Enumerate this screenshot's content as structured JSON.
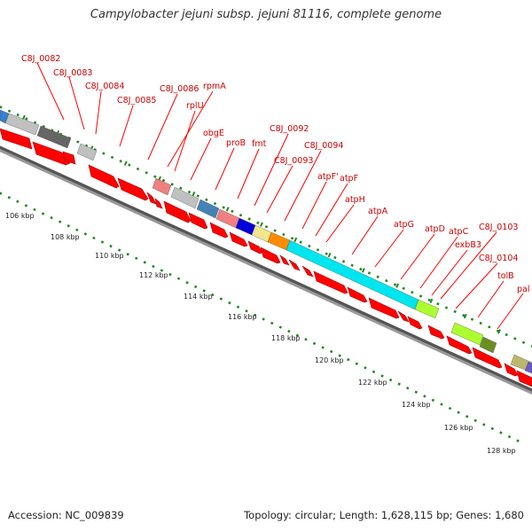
{
  "title": "Campylobacter jejuni subsp. jejuni 81116, complete genome",
  "footer": {
    "accession": "Accession: NC_009839",
    "stats": "Topology: circular; Length: 1,628,115 bp; Genes: 1,680"
  },
  "colors": {
    "gene_arrow": "#ff0000",
    "label_line": "#ff0000",
    "label_text": "#cc0000",
    "tick_dots": "#228822",
    "backbone": "#999999",
    "backbone_shadow": "#555555"
  },
  "gene_labels": [
    "C8J_0082",
    "C8J_0083",
    "C8J_0084",
    "C8J_0085",
    "C8J_0086",
    "rpmA",
    "rplU",
    "obgE",
    "proB",
    "fmt",
    "C8J_0092",
    "C8J_0093",
    "C8J_0094",
    "atpF'",
    "atpF",
    "atpH",
    "atpA",
    "atpG",
    "atpD",
    "atpC",
    "exbB3",
    "C8J_0103",
    "C8J_0104",
    "tolB",
    "pal"
  ],
  "kbp_labels": [
    "106 kbp",
    "108 kbp",
    "110 kbp",
    "112 kbp",
    "114 kbp",
    "116 kbp",
    "118 kbp",
    "120 kbp",
    "122 kbp",
    "124 kbp",
    "126 kbp",
    "128 kbp"
  ],
  "feature_colors": [
    "#3a7fcc",
    "#c0c0c0",
    "#666666",
    "#c0c0c0",
    "#f08080",
    "#c0c0c0",
    "#4682b4",
    "#f08080",
    "#0000dd",
    "#f0e68c",
    "#ff8c00",
    "#00e5ee",
    "#adff2f",
    "#adff2f",
    "#6b8e23",
    "#bdb76b",
    "#6a5acd"
  ]
}
